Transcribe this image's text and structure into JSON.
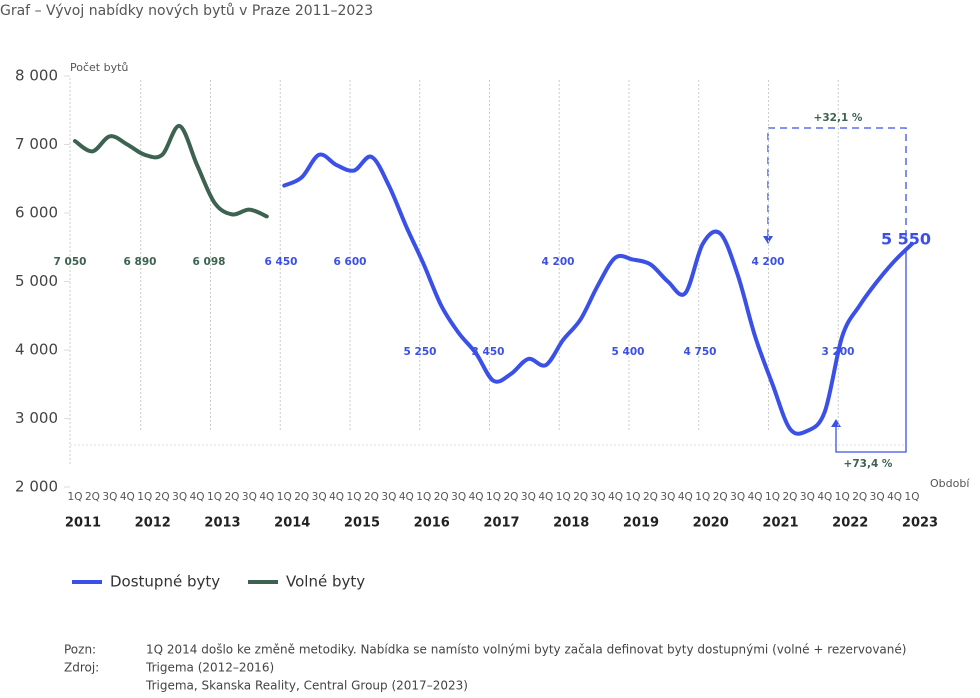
{
  "chart_data": {
    "type": "line",
    "title": "Graf – Vývoj nabídky nových bytů v Praze  2011–2023",
    "y_label": "Počet bytů",
    "x_label": "Období",
    "categories": [
      "1Q",
      "2Q",
      "3Q",
      "4Q",
      "1Q",
      "2Q",
      "3Q",
      "4Q",
      "1Q",
      "2Q",
      "3Q",
      "4Q",
      "1Q",
      "2Q",
      "3Q",
      "4Q",
      "1Q",
      "2Q",
      "3Q",
      "4Q",
      "1Q",
      "2Q",
      "3Q",
      "4Q",
      "1Q",
      "2Q",
      "3Q",
      "4Q",
      "1Q",
      "2Q",
      "3Q",
      "4Q",
      "1Q",
      "2Q",
      "3Q",
      "4Q",
      "1Q",
      "2Q",
      "3Q",
      "4Q",
      "1Q",
      "2Q",
      "3Q",
      "4Q",
      "1Q",
      "2Q",
      "3Q",
      "4Q",
      "1Q"
    ],
    "years": [
      "2011",
      "2012",
      "2013",
      "2014",
      "2015",
      "2016",
      "2017",
      "2018",
      "2019",
      "2020",
      "2021",
      "2022",
      "2023"
    ],
    "series": [
      {
        "name": "Dostupné byty",
        "color": "#3b50e6",
        "values": [
          null,
          null,
          null,
          null,
          null,
          null,
          null,
          null,
          null,
          null,
          null,
          null,
          6400,
          6520,
          6850,
          6700,
          6620,
          6820,
          6400,
          5800,
          5250,
          4650,
          4250,
          3950,
          3550,
          3650,
          3870,
          3780,
          4150,
          4450,
          4950,
          5350,
          5320,
          5250,
          5000,
          4830,
          5550,
          5700,
          5100,
          4200,
          3500,
          2850,
          2820,
          3100,
          4200,
          4650,
          5000,
          5300,
          5550
        ]
      },
      {
        "name": "Volné byty",
        "color": "#3d6350",
        "values": [
          7050,
          6900,
          7120,
          7000,
          6850,
          6850,
          7270,
          6700,
          6150,
          5980,
          6050,
          5950,
          null,
          null,
          null,
          null,
          null,
          null,
          null,
          null,
          null,
          null,
          null,
          null,
          null,
          null,
          null,
          null,
          null,
          null,
          null,
          null,
          null,
          null,
          null,
          null,
          null,
          null,
          null,
          null,
          null,
          null,
          null,
          null,
          null,
          null,
          null,
          null,
          null
        ]
      }
    ],
    "ylim": [
      2000,
      8000
    ],
    "yticks": [
      {
        "value": 2000,
        "label": "2 000"
      },
      {
        "value": 3000,
        "label": "3 000"
      },
      {
        "value": 4000,
        "label": "4 000"
      },
      {
        "value": 5000,
        "label": "5 000"
      },
      {
        "value": 6000,
        "label": "6 000"
      },
      {
        "value": 7000,
        "label": "7 000"
      },
      {
        "value": 8000,
        "label": "8 000"
      }
    ],
    "annotations": [
      "7 050",
      "6 890",
      "6 098",
      "6 450",
      "6 600",
      "5 250",
      "3 450",
      "4 200",
      "5 400",
      "4 750",
      "4 200",
      "3 200",
      "5 550",
      "+32,1 %",
      "+73,4 %"
    ],
    "notes": [
      {
        "key": "Pozn:",
        "text": "1Q 2014 došlo ke změně metodiky. Nabídka se namísto volnými byty začala definovat byty dostupnými (volné + rezervované)"
      },
      {
        "key": "Zdroj:",
        "text": "Trigema (2012–2016)"
      },
      {
        "key": "",
        "text": "Trigema, Skanska Reality, Central Group (2017–2023)"
      }
    ]
  }
}
